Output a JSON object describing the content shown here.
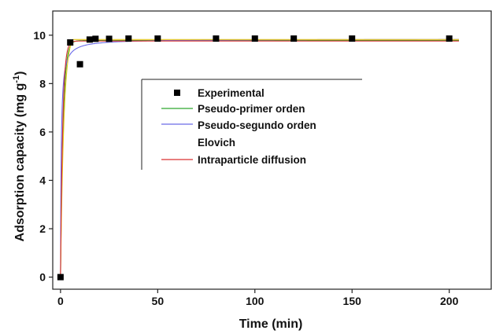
{
  "chart_data": {
    "type": "scatter",
    "xlabel": "Time (min)",
    "ylabel": "Adsorption capacity (mg g",
    "ylabel_sup": "-1",
    "ylabel_end": ")",
    "xlim": [
      -4,
      222
    ],
    "ylim": [
      -0.5,
      11.0
    ],
    "x_ticks": [
      0,
      50,
      100,
      150,
      200
    ],
    "y_ticks": [
      0,
      2,
      4,
      6,
      8,
      10
    ],
    "legend_placement": "center-right",
    "series": [
      {
        "name": "Experimental",
        "kind": "points",
        "color": "#000000",
        "points": [
          [
            0,
            0
          ],
          [
            5,
            9.7
          ],
          [
            10,
            8.8
          ],
          [
            15,
            9.82
          ],
          [
            18,
            9.85
          ],
          [
            25,
            9.85
          ],
          [
            35,
            9.86
          ],
          [
            50,
            9.86
          ],
          [
            80,
            9.86
          ],
          [
            100,
            9.86
          ],
          [
            120,
            9.86
          ],
          [
            150,
            9.86
          ],
          [
            200,
            9.86
          ]
        ]
      },
      {
        "name": "Pseudo-primer orden",
        "kind": "line",
        "color": "#2ea82e",
        "model": {
          "type": "pfo",
          "qe": 9.78,
          "k": 0.75
        },
        "x_range": [
          0,
          205
        ]
      },
      {
        "name": "Pseudo-segundo orden",
        "kind": "line",
        "color": "#6a6ae8",
        "model": {
          "type": "pso",
          "qe": 9.84,
          "k": 0.3
        },
        "x_range": [
          0,
          205
        ]
      },
      {
        "name": "Elovich",
        "kind": "line",
        "color": "#e6c619",
        "model": {
          "type": "elovich",
          "qe": 9.82,
          "k": 0.6
        },
        "x_range": [
          0,
          205
        ]
      },
      {
        "name": "Intraparticle diffusion",
        "kind": "line",
        "color": "#d93030",
        "model": {
          "type": "pfo",
          "qe": 9.76,
          "k": 0.9
        },
        "x_range": [
          0,
          205
        ]
      }
    ]
  }
}
